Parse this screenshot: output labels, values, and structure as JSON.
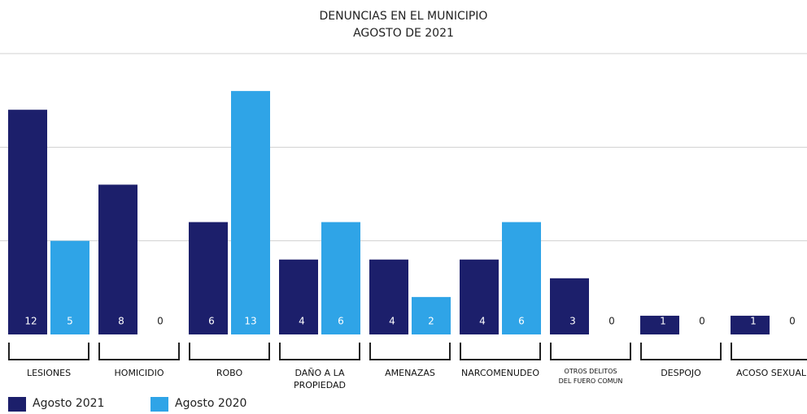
{
  "chart_data": {
    "type": "bar",
    "title": "DENUNCIAS EN EL MUNICIPIO",
    "subtitle": "AGOSTO DE 2021",
    "categories": [
      "LESIONES",
      "HOMICIDIO",
      "ROBO",
      "DAÑO A LA PROPIEDAD",
      "AMENAZAS",
      "NARCOMENUDEO",
      "OTROS DELITOS DEL FUERO COMUN",
      "DESPOJO",
      "ACOSO SEXUAL"
    ],
    "series": [
      {
        "name": "Agosto 2021",
        "color": "#1c1f6b",
        "values": [
          12,
          8,
          6,
          4,
          4,
          4,
          3,
          1,
          1
        ]
      },
      {
        "name": "Agosto 2020",
        "color": "#2fa4e7",
        "values": [
          5,
          0,
          13,
          6,
          2,
          6,
          0,
          0,
          0
        ]
      }
    ],
    "ylim": [
      0,
      15
    ],
    "yticks": [
      5,
      10,
      15
    ],
    "grid": true
  }
}
